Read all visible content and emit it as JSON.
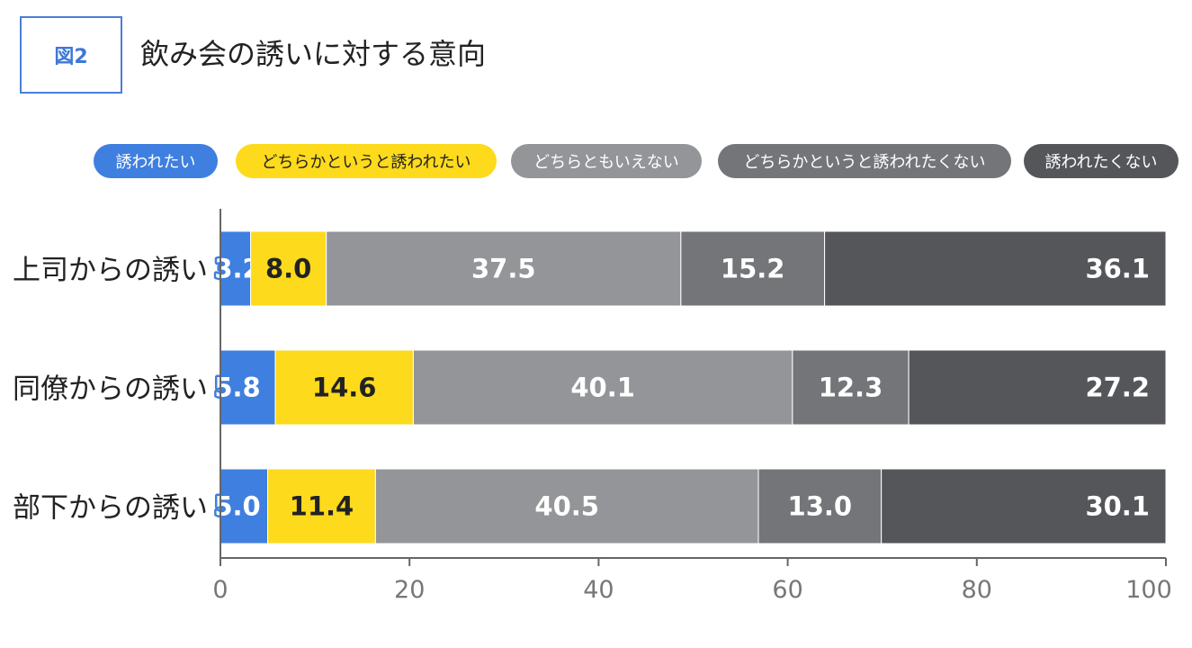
{
  "figure_label": "図2",
  "title": "飲み会の誘いに対する意向",
  "colors": {
    "accent": "#4a7fd9",
    "series": [
      "#3f7fdf",
      "#fdda1b",
      "#939598",
      "#747579",
      "#55565a"
    ]
  },
  "chart_data": {
    "type": "bar",
    "orientation": "horizontal",
    "stacked": true,
    "categories": [
      "上司からの誘い",
      "同僚からの誘い",
      "部下からの誘い"
    ],
    "series": [
      {
        "name": "誘われたい",
        "values": [
          3.2,
          5.8,
          5.0
        ]
      },
      {
        "name": "どちらかというと誘われたい",
        "values": [
          8.0,
          14.6,
          11.4
        ]
      },
      {
        "name": "どちらともいえない",
        "values": [
          37.5,
          40.1,
          40.5
        ]
      },
      {
        "name": "どちらかというと誘われたくない",
        "values": [
          15.2,
          12.3,
          13.0
        ]
      },
      {
        "name": "誘われたくない",
        "values": [
          36.1,
          27.2,
          30.1
        ]
      }
    ],
    "xlim": [
      0,
      100
    ],
    "xticks": [
      0,
      20,
      40,
      60,
      80,
      100
    ],
    "legend": "top",
    "grid": false
  }
}
